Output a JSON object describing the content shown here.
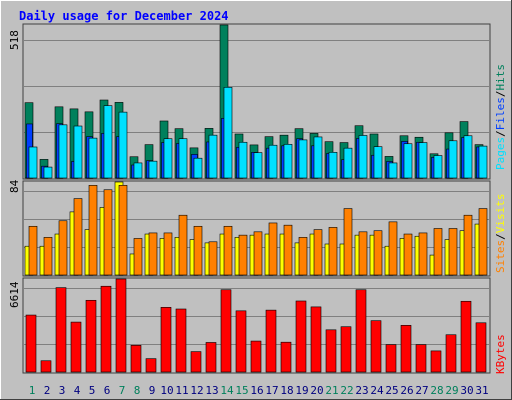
{
  "title": "Daily usage for December 2024",
  "colors": {
    "background": "#C0C0C0",
    "panel": "#C0C0C0",
    "grid": "#808080",
    "hits": "#00805C",
    "files": "#0040FF",
    "pages": "#00E0FF",
    "visits": "#FFFF00",
    "sites": "#FF8000",
    "kbytes": "#FF0000",
    "title": "#0000FF",
    "weekend_day": "#00805C",
    "weekday": "#000080"
  },
  "chart_data": [
    {
      "type": "bar",
      "panel": "hits_files_pages",
      "ylim": [
        0,
        518
      ],
      "max_label": "518",
      "legend": [
        "Pages",
        "Files",
        "Hits"
      ],
      "categories": [
        "1",
        "2",
        "3",
        "4",
        "5",
        "6",
        "7",
        "8",
        "9",
        "10",
        "11",
        "12",
        "13",
        "14",
        "15",
        "16",
        "17",
        "18",
        "19",
        "20",
        "21",
        "22",
        "23",
        "24",
        "25",
        "26",
        "27",
        "28",
        "29",
        "30",
        "31"
      ],
      "series": [
        {
          "name": "Hits",
          "values": [
            255,
            63,
            241,
            234,
            224,
            264,
            256,
            72,
            113,
            193,
            167,
            102,
            168,
            518,
            149,
            112,
            140,
            145,
            167,
            151,
            123,
            120,
            177,
            149,
            73,
            143,
            138,
            82,
            153,
            191,
            113
          ]
        },
        {
          "name": "Files",
          "values": [
            183,
            40,
            184,
            56,
            140,
            151,
            140,
            44,
            59,
            120,
            117,
            80,
            122,
            202,
            104,
            87,
            101,
            109,
            133,
            109,
            83,
            62,
            134,
            77,
            56,
            124,
            121,
            70,
            98,
            137,
            105
          ]
        },
        {
          "name": "Pages",
          "values": [
            105,
            37,
            180,
            176,
            135,
            245,
            223,
            51,
            57,
            133,
            133,
            67,
            145,
            307,
            121,
            86,
            111,
            114,
            129,
            139,
            87,
            101,
            144,
            106,
            51,
            116,
            120,
            76,
            126,
            143,
            108
          ]
        }
      ]
    },
    {
      "type": "bar",
      "panel": "visits_sites",
      "ylim": [
        0,
        84
      ],
      "max_label": "84",
      "legend": [
        "Sites",
        "Visits"
      ],
      "categories": [
        "1",
        "2",
        "3",
        "4",
        "5",
        "6",
        "7",
        "8",
        "9",
        "10",
        "11",
        "12",
        "13",
        "14",
        "15",
        "16",
        "17",
        "18",
        "19",
        "20",
        "21",
        "22",
        "23",
        "24",
        "25",
        "26",
        "27",
        "28",
        "29",
        "30",
        "31"
      ],
      "series": [
        {
          "name": "Visits",
          "values": [
            26,
            26,
            37,
            57,
            41,
            61,
            84,
            19,
            37,
            33,
            34,
            32,
            29,
            37,
            34,
            36,
            37,
            37,
            29,
            37,
            28,
            28,
            36,
            36,
            26,
            33,
            35,
            18,
            32,
            40,
            46
          ]
        },
        {
          "name": "Sites",
          "values": [
            44,
            34,
            49,
            69,
            81,
            77,
            81,
            33,
            38,
            38,
            54,
            44,
            30,
            44,
            36,
            39,
            47,
            45,
            34,
            41,
            43,
            60,
            39,
            40,
            48,
            37,
            38,
            42,
            42,
            54,
            60
          ]
        }
      ]
    },
    {
      "type": "bar",
      "panel": "kbytes",
      "ylim": [
        0,
        6614
      ],
      "max_label": "6614",
      "legend": [
        "KBytes"
      ],
      "categories": [
        "1",
        "2",
        "3",
        "4",
        "5",
        "6",
        "7",
        "8",
        "9",
        "10",
        "11",
        "12",
        "13",
        "14",
        "15",
        "16",
        "17",
        "18",
        "19",
        "20",
        "21",
        "22",
        "23",
        "24",
        "25",
        "26",
        "27",
        "28",
        "29",
        "30",
        "31"
      ],
      "series": [
        {
          "name": "KBytes",
          "values": [
            4050,
            800,
            6000,
            3550,
            5100,
            6100,
            6614,
            1900,
            950,
            4600,
            4480,
            1450,
            2100,
            5850,
            4350,
            2200,
            4400,
            2120,
            5050,
            4630,
            3000,
            3220,
            5850,
            3650,
            1950,
            3320,
            1950,
            1500,
            2650,
            5030,
            3500
          ]
        }
      ]
    }
  ],
  "weekend_days": [
    1,
    7,
    8,
    14,
    15,
    21,
    22,
    28,
    29
  ]
}
